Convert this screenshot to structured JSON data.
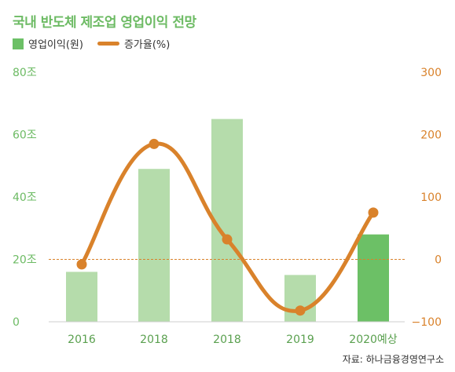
{
  "title": "국내 반도체 제조업 영업이익 전망",
  "legend": {
    "bar_label": "영업이익(원)",
    "line_label": "증가율(%)"
  },
  "source": "자료: 하나금융경영연구소",
  "colors": {
    "bar": "#b5dcab",
    "bar_highlight": "#6cc066",
    "line": "#d9822b",
    "left_axis": "#6dbb64",
    "right_axis": "#d9822b",
    "zero_line": "#d9822b"
  },
  "chart_data": {
    "type": "bar",
    "categories": [
      "2016",
      "2018",
      "2018",
      "2019",
      "2020예상"
    ],
    "series": [
      {
        "name": "영업이익(원)",
        "type": "bar",
        "axis": "left",
        "values": [
          16,
          49,
          65,
          15,
          28
        ]
      },
      {
        "name": "증가율(%)",
        "type": "line",
        "axis": "right",
        "values": [
          -8,
          185,
          32,
          -82,
          75
        ]
      }
    ],
    "left_axis": {
      "ticks": [
        "0",
        "20조",
        "40조",
        "60조",
        "80조"
      ],
      "values": [
        0,
        20,
        40,
        60,
        80
      ],
      "ylim": [
        0,
        80
      ]
    },
    "right_axis": {
      "ticks": [
        "−100",
        "0",
        "100",
        "200",
        "300"
      ],
      "values": [
        -100,
        0,
        100,
        200,
        300
      ],
      "ylim": [
        -100,
        300
      ]
    },
    "highlight_index": 4,
    "zero_reference_line": true,
    "grid": false
  }
}
